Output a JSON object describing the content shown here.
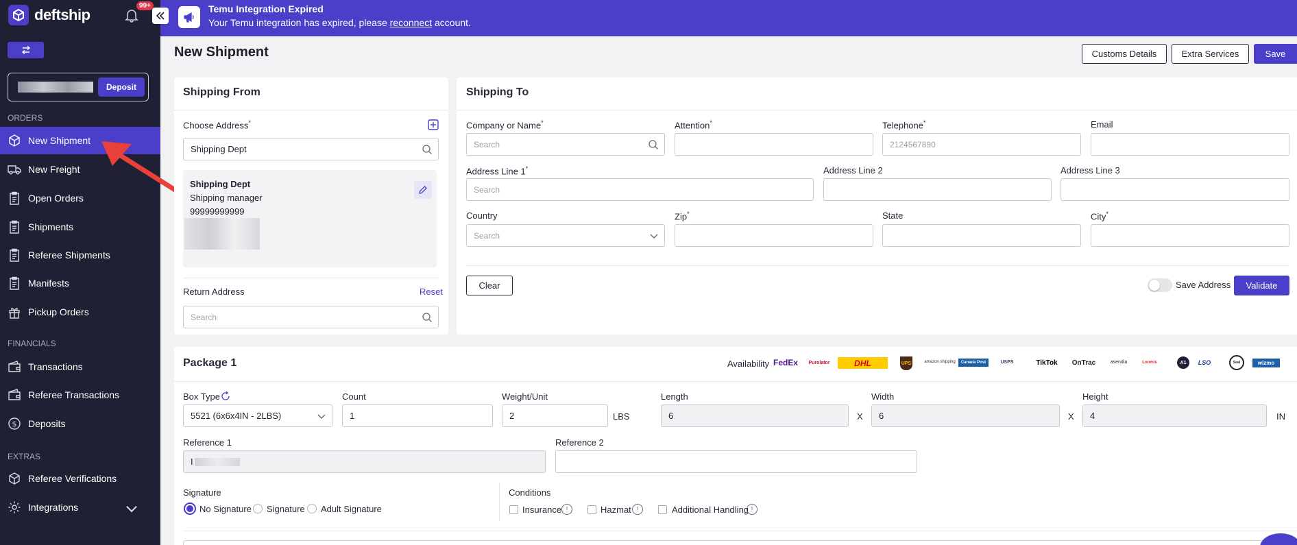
{
  "app": {
    "name": "deftship",
    "notification_count": "99+",
    "deposit_label": "Deposit"
  },
  "sidebar": {
    "sections": {
      "orders": "ORDERS",
      "financials": "FINANCIALS",
      "extras": "EXTRAS"
    },
    "items": [
      {
        "label": "New Shipment",
        "icon": "box-icon"
      },
      {
        "label": "New Freight",
        "icon": "truck-icon"
      },
      {
        "label": "Open Orders",
        "icon": "clipboard-icon"
      },
      {
        "label": "Shipments",
        "icon": "clipboard-icon"
      },
      {
        "label": "Referee Shipments",
        "icon": "clipboard-icon"
      },
      {
        "label": "Manifests",
        "icon": "clipboard-icon"
      },
      {
        "label": "Pickup Orders",
        "icon": "gift-icon"
      },
      {
        "label": "Transactions",
        "icon": "wallet-icon"
      },
      {
        "label": "Referee Transactions",
        "icon": "wallet-icon"
      },
      {
        "label": "Deposits",
        "icon": "dollar-icon"
      },
      {
        "label": "Referee Verifications",
        "icon": "box-icon"
      },
      {
        "label": "Integrations",
        "icon": "gear-icon"
      }
    ]
  },
  "banner": {
    "title": "Temu Integration Expired",
    "text_before": "Your Temu integration has expired, please ",
    "link": "reconnect",
    "text_after": " account."
  },
  "page": {
    "title": "New Shipment",
    "buttons": {
      "customs": "Customs Details",
      "extra": "Extra Services",
      "save": "Save"
    }
  },
  "shipping_from": {
    "title": "Shipping From",
    "choose_address_label": "Choose Address",
    "choose_address_value": "Shipping Dept",
    "address": {
      "name": "Shipping Dept",
      "role": "Shipping manager",
      "phone": "99999999999"
    },
    "return_label": "Return Address",
    "reset_label": "Reset",
    "return_placeholder": "Search"
  },
  "shipping_to": {
    "title": "Shipping To",
    "company_label": "Company or Name",
    "company_placeholder": "Search",
    "attention_label": "Attention",
    "telephone_label": "Telephone",
    "telephone_placeholder": "2124567890",
    "email_label": "Email",
    "addr1_label": "Address Line 1",
    "addr1_placeholder": "Search",
    "addr2_label": "Address Line 2",
    "addr3_label": "Address Line 3",
    "country_label": "Country",
    "country_placeholder": "Search",
    "zip_label": "Zip",
    "state_label": "State",
    "city_label": "City",
    "clear": "Clear",
    "save_address": "Save Address",
    "validate": "Validate"
  },
  "package": {
    "title": "Package 1",
    "availability": "Availability",
    "carriers": [
      "FedEx",
      "Purolator",
      "DHL",
      "UPS",
      "amazon shipping",
      "Canada Post",
      "USPS",
      "TikTok",
      "OnTrac",
      "asendia",
      "Loomis",
      "A1",
      "LSO",
      "Seal",
      "wizmo"
    ],
    "box_type_label": "Box Type",
    "box_type_value": "5521 (6x6x4IN - 2LBS)",
    "count_label": "Count",
    "count_value": "1",
    "weight_label": "Weight/Unit",
    "weight_value": "2",
    "weight_unit": "LBS",
    "length_label": "Length",
    "length_value": "6",
    "width_label": "Width",
    "width_value": "6",
    "height_label": "Height",
    "height_value": "4",
    "dim_unit": "IN",
    "x": "X",
    "ref1_label": "Reference 1",
    "ref1_value": "I",
    "ref2_label": "Reference 2",
    "signature_label": "Signature",
    "signature_options": [
      "No Signature",
      "Signature",
      "Adult Signature"
    ],
    "conditions_label": "Conditions",
    "conditions": [
      "Insurance",
      "Hazmat",
      "Additional Handling"
    ]
  },
  "colors": {
    "primary": "#4b3fc9",
    "sidebar": "#1f2033",
    "badge": "#e0364b"
  }
}
